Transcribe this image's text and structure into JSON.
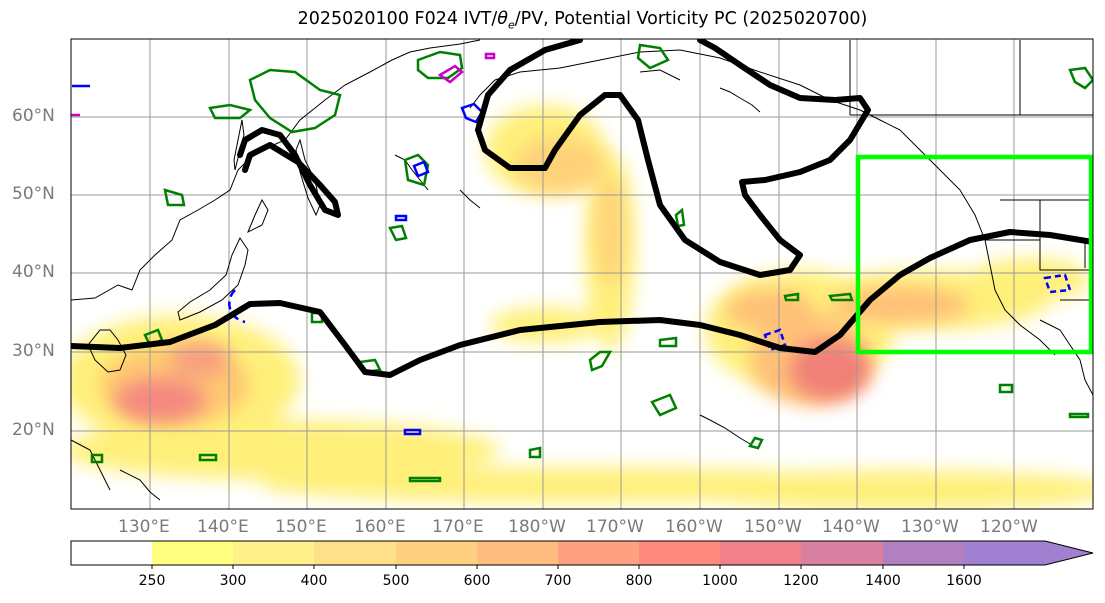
{
  "title": {
    "prefix": "2025020100 F024 IVT/",
    "theta": "θ",
    "theta_sub": "e",
    "suffix": "/PV, Potential Vorticity PC (2025020700)"
  },
  "map": {
    "lat_labels": [
      "60°N",
      "50°N",
      "40°N",
      "30°N",
      "20°N"
    ],
    "lon_labels": [
      "130°E",
      "140°E",
      "150°E",
      "160°E",
      "170°E",
      "180°W",
      "170°W",
      "160°W",
      "150°W",
      "140°W",
      "130°W",
      "120°W"
    ],
    "highlight_box_color": "#00ff00",
    "pv_contour_color": "#000000"
  },
  "colorbar": {
    "labels": [
      "250",
      "300",
      "400",
      "500",
      "600",
      "700",
      "800",
      "1000",
      "1200",
      "1400",
      "1600"
    ],
    "colors": [
      "#ffffff",
      "#ffff80",
      "#fff08a",
      "#ffe08a",
      "#ffd080",
      "#ffbe80",
      "#ffa080",
      "#ff8a80",
      "#f0808a",
      "#d880a0",
      "#b080c0",
      "#a080d0"
    ]
  }
}
